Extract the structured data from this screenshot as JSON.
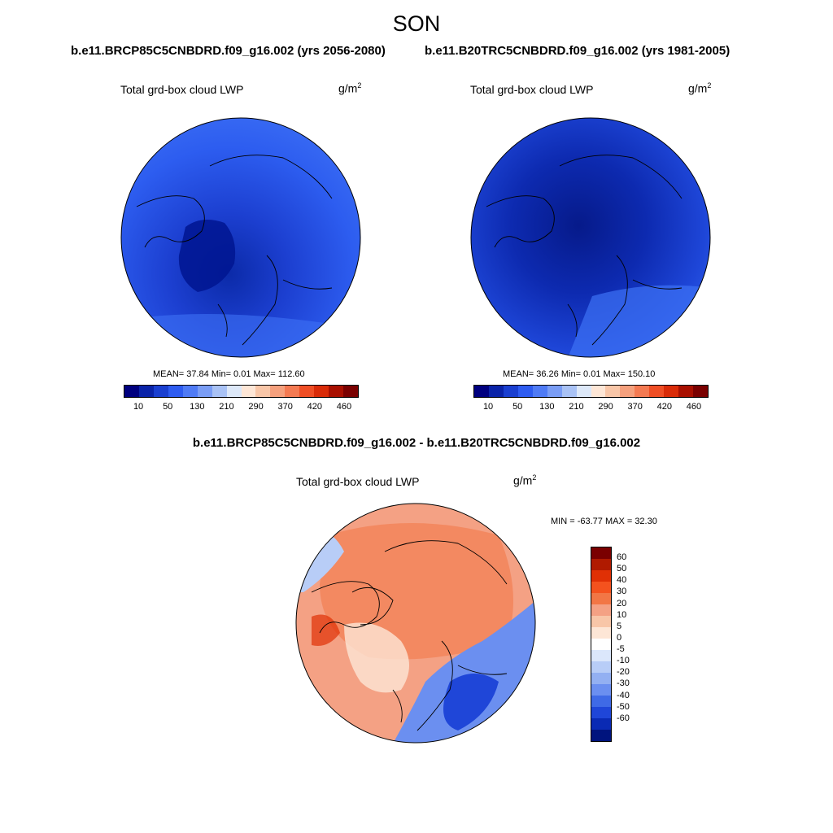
{
  "season": "SON",
  "panels": {
    "left": {
      "case": "b.e11.BRCP85C5CNBDRD.f09_g16.002 (yrs 2056-2080)",
      "variable": "Total grd-box cloud LWP",
      "units_base": "g/m",
      "units_exp": "2",
      "stats": "MEAN=  37.84  Min=   0.01  Max= 112.60",
      "base_color": "#2d5df0",
      "dark_color": "#0b2aa8"
    },
    "right": {
      "case": "b.e11.B20TRC5CNBDRD.f09_g16.002 (yrs 1981-2005)",
      "variable": "Total grd-box cloud LWP",
      "units_base": "g/m",
      "units_exp": "2",
      "stats": "MEAN=  36.26  Min=   0.01  Max= 150.10",
      "base_color": "#1f44d6",
      "dark_color": "#0a1f95"
    },
    "diff": {
      "title": "b.e11.BRCP85C5CNBDRD.f09_g16.002 - b.e11.B20TRC5CNBDRD.f09_g16.002",
      "variable": "Total grd-box cloud LWP",
      "units_base": "g/m",
      "units_exp": "2",
      "stats": "MIN = -63.77 MAX =  32.30",
      "base_color": "#f4a184"
    }
  },
  "colorbar_abs": {
    "colors": [
      "#00007f",
      "#0a23a8",
      "#1a3fd0",
      "#2e5cf0",
      "#4f7bf5",
      "#7a9df5",
      "#a9c2f5",
      "#dde8f8",
      "#fde6d6",
      "#f8c6a8",
      "#f5a07d",
      "#f47a52",
      "#ef4e25",
      "#d92b08",
      "#a80f00",
      "#7a0000"
    ],
    "ticks": [
      "10",
      "50",
      "130",
      "210",
      "290",
      "370",
      "420",
      "460"
    ]
  },
  "colorbar_diff": {
    "colors": [
      "#7a0000",
      "#b01a00",
      "#e03005",
      "#f4521e",
      "#f27645",
      "#f4a184",
      "#f8c6a8",
      "#fde6d6",
      "#ffffff",
      "#dbe7fb",
      "#b8cdf7",
      "#93b0f2",
      "#6b8ff0",
      "#3f6ae6",
      "#1f46d8",
      "#0a2ab4",
      "#00147e"
    ],
    "ticks": [
      "60",
      "50",
      "40",
      "30",
      "20",
      "10",
      "5",
      "0",
      "-5",
      "-10",
      "-20",
      "-30",
      "-40",
      "-50",
      "-60"
    ]
  }
}
